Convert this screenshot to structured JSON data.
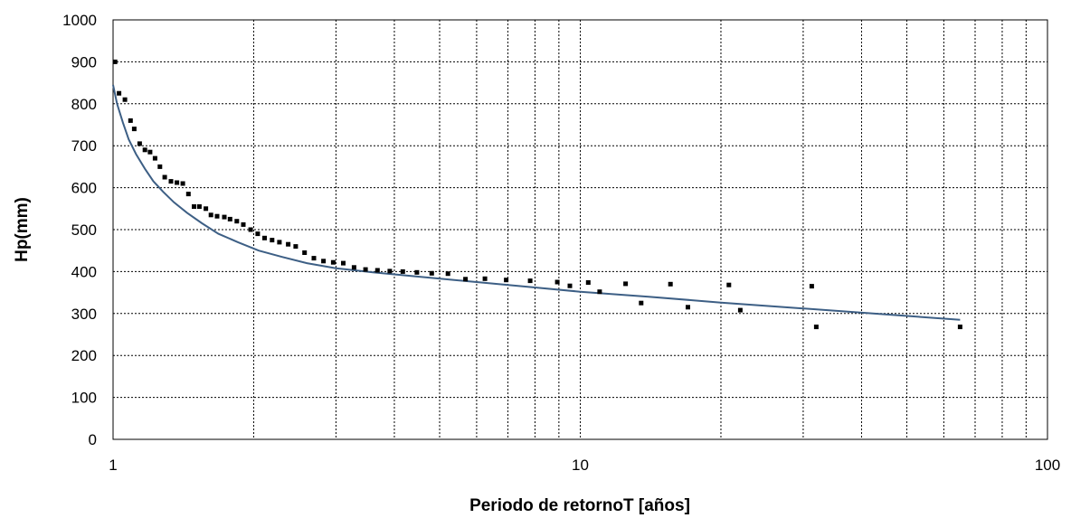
{
  "chart_data": {
    "type": "scatter",
    "title": "",
    "xlabel": "Periodo de retornoT [años]",
    "ylabel": "Hp(mm)",
    "x_scale": "log",
    "xlim": [
      1,
      100
    ],
    "ylim": [
      0,
      1000
    ],
    "x_ticks": [
      "1",
      "10",
      "100"
    ],
    "y_ticks": [
      "0",
      "100",
      "200",
      "300",
      "400",
      "500",
      "600",
      "700",
      "800",
      "900",
      "1000"
    ],
    "grid": true,
    "legend": "none",
    "colors": {
      "points": "#000000",
      "fit_line": "#3d5f85",
      "grid": "#000000"
    },
    "series": [
      {
        "kind": "points",
        "points": [
          [
            1.01,
            900
          ],
          [
            1.03,
            825
          ],
          [
            1.06,
            810
          ],
          [
            1.09,
            760
          ],
          [
            1.11,
            740
          ],
          [
            1.14,
            705
          ],
          [
            1.17,
            690
          ],
          [
            1.2,
            685
          ],
          [
            1.23,
            670
          ],
          [
            1.26,
            650
          ],
          [
            1.29,
            625
          ],
          [
            1.33,
            615
          ],
          [
            1.37,
            612
          ],
          [
            1.41,
            610
          ],
          [
            1.45,
            585
          ],
          [
            1.49,
            555
          ],
          [
            1.53,
            555
          ],
          [
            1.58,
            550
          ],
          [
            1.62,
            535
          ],
          [
            1.67,
            532
          ],
          [
            1.73,
            530
          ],
          [
            1.78,
            525
          ],
          [
            1.84,
            520
          ],
          [
            1.9,
            512
          ],
          [
            1.97,
            500
          ],
          [
            2.04,
            490
          ],
          [
            2.11,
            480
          ],
          [
            2.19,
            475
          ],
          [
            2.27,
            470
          ],
          [
            2.37,
            465
          ],
          [
            2.46,
            460
          ],
          [
            2.57,
            445
          ],
          [
            2.69,
            432
          ],
          [
            2.82,
            425
          ],
          [
            2.96,
            422
          ],
          [
            3.11,
            420
          ],
          [
            3.28,
            410
          ],
          [
            3.47,
            405
          ],
          [
            3.68,
            403
          ],
          [
            3.91,
            401
          ],
          [
            4.17,
            400
          ],
          [
            4.47,
            398
          ],
          [
            4.81,
            396
          ],
          [
            5.21,
            395
          ],
          [
            5.68,
            382
          ],
          [
            6.25,
            383
          ],
          [
            6.94,
            380
          ],
          [
            7.81,
            378
          ],
          [
            8.93,
            375
          ],
          [
            10.4,
            374
          ],
          [
            12.5,
            371
          ],
          [
            15.6,
            370
          ],
          [
            20.8,
            368
          ],
          [
            31.3,
            365
          ],
          [
            9.5,
            366
          ],
          [
            11.0,
            352
          ],
          [
            13.5,
            325
          ],
          [
            17.0,
            315
          ],
          [
            22.0,
            308
          ],
          [
            32.0,
            268
          ],
          [
            65.0,
            268
          ]
        ]
      },
      {
        "kind": "fit",
        "points": [
          [
            1.0,
            845
          ],
          [
            1.02,
            800
          ],
          [
            1.05,
            755
          ],
          [
            1.08,
            715
          ],
          [
            1.12,
            680
          ],
          [
            1.17,
            645
          ],
          [
            1.22,
            615
          ],
          [
            1.28,
            590
          ],
          [
            1.35,
            565
          ],
          [
            1.44,
            540
          ],
          [
            1.55,
            515
          ],
          [
            1.68,
            490
          ],
          [
            1.85,
            470
          ],
          [
            2.05,
            450
          ],
          [
            2.3,
            435
          ],
          [
            2.6,
            420
          ],
          [
            3.0,
            408
          ],
          [
            3.6,
            398
          ],
          [
            4.5,
            388
          ],
          [
            6.0,
            375
          ],
          [
            8.0,
            362
          ],
          [
            10.0,
            352
          ],
          [
            14.0,
            340
          ],
          [
            20.0,
            326
          ],
          [
            30.0,
            312
          ],
          [
            45.0,
            298
          ],
          [
            65.0,
            285
          ]
        ]
      }
    ]
  }
}
